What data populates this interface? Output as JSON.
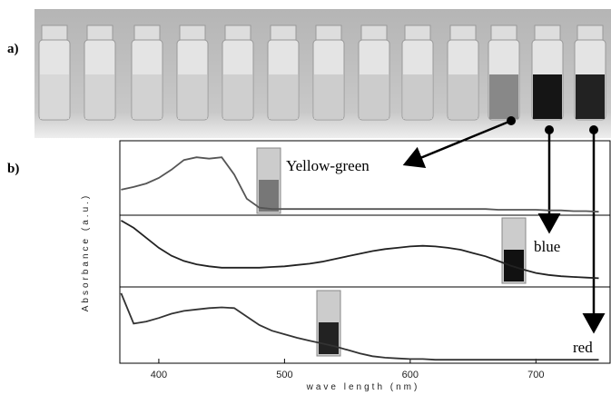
{
  "figure_labels": [
    "a)",
    "b)"
  ],
  "chart_data": {
    "type": "line",
    "xlabel": "wave length (nm)",
    "ylabel": "Absorbance (a.u.)",
    "xlim": [
      369,
      759
    ],
    "xticks": [
      400,
      500,
      600,
      700
    ],
    "x": [
      370,
      380,
      390,
      400,
      410,
      420,
      430,
      440,
      450,
      460,
      470,
      480,
      490,
      500,
      510,
      520,
      530,
      540,
      550,
      560,
      570,
      580,
      590,
      600,
      610,
      620,
      630,
      640,
      650,
      660,
      670,
      680,
      690,
      700,
      710,
      720,
      730,
      740,
      750
    ],
    "series": [
      {
        "name": "Yellow-green",
        "color": "#555555",
        "ylim": [
          0,
          1
        ],
        "values": [
          0.33,
          0.37,
          0.42,
          0.5,
          0.62,
          0.76,
          0.8,
          0.78,
          0.8,
          0.55,
          0.2,
          0.07,
          0.05,
          0.05,
          0.05,
          0.05,
          0.05,
          0.05,
          0.05,
          0.05,
          0.05,
          0.05,
          0.05,
          0.05,
          0.05,
          0.05,
          0.05,
          0.05,
          0.05,
          0.05,
          0.04,
          0.04,
          0.04,
          0.04,
          0.03,
          0.03,
          0.02,
          0.02,
          0.01
        ]
      },
      {
        "name": "blue",
        "color": "#222222",
        "ylim": [
          0,
          1
        ],
        "values": [
          0.96,
          0.85,
          0.7,
          0.55,
          0.43,
          0.35,
          0.3,
          0.27,
          0.25,
          0.25,
          0.25,
          0.25,
          0.26,
          0.27,
          0.29,
          0.31,
          0.34,
          0.38,
          0.42,
          0.46,
          0.5,
          0.53,
          0.55,
          0.57,
          0.58,
          0.57,
          0.55,
          0.52,
          0.47,
          0.42,
          0.35,
          0.28,
          0.22,
          0.17,
          0.14,
          0.12,
          0.11,
          0.1,
          0.09
        ]
      },
      {
        "name": "red",
        "color": "#333333",
        "ylim": [
          0,
          1
        ],
        "values": [
          0.95,
          0.52,
          0.55,
          0.6,
          0.66,
          0.7,
          0.72,
          0.74,
          0.75,
          0.74,
          0.62,
          0.5,
          0.42,
          0.37,
          0.32,
          0.28,
          0.24,
          0.2,
          0.15,
          0.1,
          0.06,
          0.04,
          0.03,
          0.02,
          0.02,
          0.01,
          0.01,
          0.01,
          0.01,
          0.01,
          0.01,
          0.01,
          0.01,
          0.01,
          0.01,
          0.01,
          0.01,
          0.01,
          0.01
        ]
      }
    ]
  }
}
